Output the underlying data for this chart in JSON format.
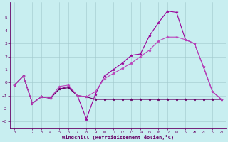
{
  "xlabel": "Windchill (Refroidissement éolien,°C)",
  "x": [
    0,
    1,
    2,
    3,
    4,
    5,
    6,
    7,
    8,
    9,
    10,
    11,
    12,
    13,
    14,
    15,
    16,
    17,
    18,
    19,
    20,
    21,
    22,
    23
  ],
  "line1": [
    -0.2,
    0.5,
    -1.6,
    -1.1,
    -1.2,
    -0.5,
    -0.3,
    -1.0,
    -2.8,
    -0.9,
    0.5,
    1.0,
    1.5,
    2.1,
    2.2,
    3.6,
    4.6,
    5.5,
    5.4,
    3.3,
    3.0,
    1.2,
    -0.7,
    -1.3
  ],
  "line2": [
    -0.2,
    0.5,
    -1.6,
    -1.1,
    -1.2,
    -0.5,
    -0.4,
    -1.0,
    -1.1,
    -1.3,
    -1.3,
    -1.3,
    -1.3,
    -1.3,
    -1.3,
    -1.3,
    -1.3,
    -1.3,
    -1.3,
    -1.3,
    -1.3,
    -1.3,
    -1.3,
    -1.3
  ],
  "line3": [
    -0.2,
    0.5,
    -1.6,
    -1.1,
    -1.2,
    -0.3,
    -0.2,
    -1.0,
    -1.1,
    -0.7,
    0.3,
    0.7,
    1.1,
    1.5,
    2.0,
    2.5,
    3.2,
    3.5,
    3.5,
    3.3,
    3.0,
    1.2,
    -0.7,
    -1.3
  ],
  "line_color1": "#990099",
  "line_color2": "#660066",
  "line_color3": "#bb44bb",
  "bg_color": "#c8eef0",
  "grid_color": "#a0c8cc",
  "axis_color": "#660066",
  "text_color": "#660066",
  "ylim": [
    -3.5,
    6.2
  ],
  "xlim": [
    -0.5,
    23.5
  ],
  "yticks": [
    -3,
    -2,
    -1,
    0,
    1,
    2,
    3,
    4,
    5
  ],
  "xticks": [
    0,
    1,
    2,
    3,
    4,
    5,
    6,
    7,
    8,
    9,
    10,
    11,
    12,
    13,
    14,
    15,
    16,
    17,
    18,
    19,
    20,
    21,
    22,
    23
  ],
  "figsize": [
    3.2,
    2.0
  ],
  "dpi": 100
}
